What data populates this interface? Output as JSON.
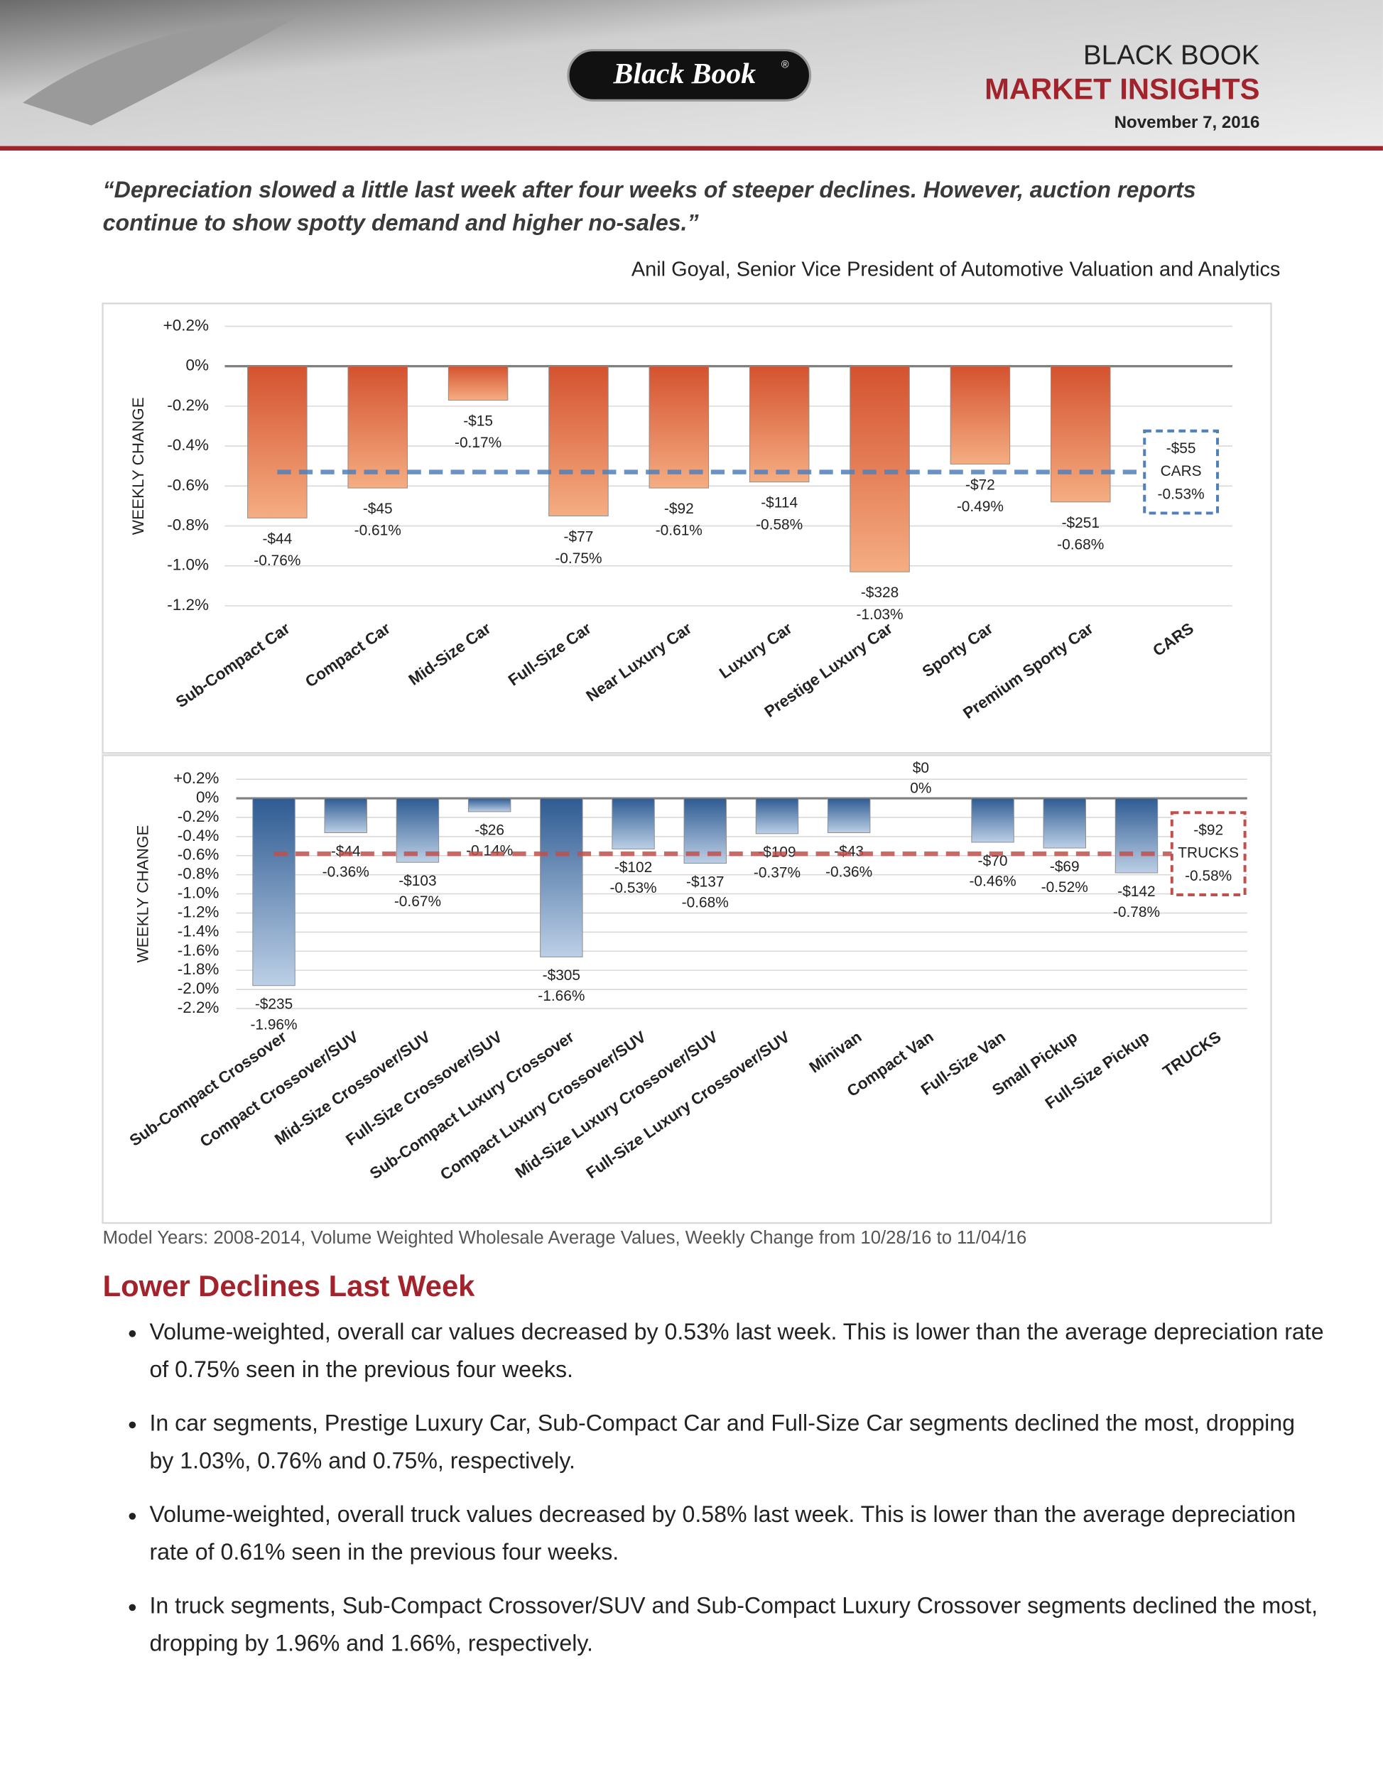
{
  "header": {
    "logo": "Black Book",
    "logo_mark": "®",
    "brand": "BLACK BOOK",
    "title": "MARKET INSIGHTS",
    "date": "November 7, 2016"
  },
  "quote": "“Depreciation slowed a little last week after four weeks of steeper declines. However, auction reports continue to show spotty demand and higher no-sales.”",
  "attribution": "Anil Goyal, Senior Vice President of Automotive Valuation and Analytics",
  "chart_data": [
    {
      "type": "bar",
      "y_label": "WEEKLY CHANGE",
      "categories": [
        "Sub-Compact Car",
        "Compact Car",
        "Mid-Size Car",
        "Full-Size Car",
        "Near Luxury Car",
        "Luxury Car",
        "Prestige Luxury Car",
        "Sporty Car",
        "Premium Sporty Car"
      ],
      "values": [
        -0.76,
        -0.61,
        -0.17,
        -0.75,
        -0.61,
        -0.58,
        -1.03,
        -0.49,
        -0.68
      ],
      "value_labels": [
        "-0.76%",
        "-0.61%",
        "-0.17%",
        "-0.75%",
        "-0.61%",
        "-0.58%",
        "-1.03%",
        "-0.49%",
        "-0.68%"
      ],
      "dollar_labels": [
        "-$44",
        "-$45",
        "-$15",
        "-$77",
        "-$92",
        "-$114",
        "-$328",
        "-$72",
        "-$251"
      ],
      "total": {
        "name": "CARS",
        "value": -0.53,
        "value_label": "-0.53%",
        "dollar_label": "-$55",
        "color": "#4f81bd"
      },
      "colors": [
        "#d4522f",
        "#f5ad82"
      ],
      "ylim": [
        -1.2,
        0.2
      ],
      "yticks": [
        {
          "value": 0.2,
          "label": "+0.2%"
        },
        {
          "value": 0,
          "label": "0%"
        },
        {
          "value": -0.2,
          "label": "-0.2%"
        },
        {
          "value": -0.4,
          "label": "-0.4%"
        },
        {
          "value": -0.6,
          "label": "-0.6%"
        },
        {
          "value": -0.8,
          "label": "-0.8%"
        },
        {
          "value": -1.0,
          "label": "-1.0%"
        },
        {
          "value": -1.2,
          "label": "-1.2%"
        }
      ],
      "grid": true
    },
    {
      "type": "bar",
      "y_label": "WEEKLY CHANGE",
      "categories": [
        "Sub-Compact Crossover",
        "Compact Crossover/SUV",
        "Mid-Size Crossover/SUV",
        "Full-Size Crossover/SUV",
        "Sub-Compact Luxury Crossover",
        "Compact Luxury Crossover/SUV",
        "Mid-Size Luxury Crossover/SUV",
        "Full-Size Luxury Crossover/SUV",
        "Minivan",
        "Compact Van",
        "Full-Size Van",
        "Small Pickup",
        "Full-Size Pickup"
      ],
      "values": [
        -1.96,
        -0.36,
        -0.67,
        -0.14,
        -1.66,
        -0.53,
        -0.68,
        -0.37,
        -0.36,
        0,
        -0.46,
        -0.52,
        -0.78
      ],
      "value_labels": [
        "-1.96%",
        "-0.36%",
        "-0.67%",
        "-0.14%",
        "-1.66%",
        "-0.53%",
        "-0.68%",
        "-0.37%",
        "-0.36%",
        "0%",
        "-0.46%",
        "-0.52%",
        "-0.78%"
      ],
      "dollar_labels": [
        "-$235",
        "-$44",
        "-$103",
        "-$26",
        "-$305",
        "-$102",
        "-$137",
        "-$109",
        "-$43",
        "$0",
        "-$70",
        "-$69",
        "-$142"
      ],
      "total": {
        "name": "TRUCKS",
        "value": -0.58,
        "value_label": "-0.58%",
        "dollar_label": "-$92",
        "color": "#c0504d"
      },
      "colors": [
        "#2e5b92",
        "#bccfe6"
      ],
      "ylim": [
        -2.2,
        0.2
      ],
      "yticks": [
        {
          "value": 0.2,
          "label": "+0.2%"
        },
        {
          "value": 0,
          "label": "0%"
        },
        {
          "value": -0.2,
          "label": "-0.2%"
        },
        {
          "value": -0.4,
          "label": "-0.4%"
        },
        {
          "value": -0.6,
          "label": "-0.6%"
        },
        {
          "value": -0.8,
          "label": "-0.8%"
        },
        {
          "value": -1.0,
          "label": "-1.0%"
        },
        {
          "value": -1.2,
          "label": "-1.2%"
        },
        {
          "value": -1.4,
          "label": "-1.4%"
        },
        {
          "value": -1.6,
          "label": "-1.6%"
        },
        {
          "value": -1.8,
          "label": "-1.8%"
        },
        {
          "value": -2.0,
          "label": "-2.0%"
        },
        {
          "value": -2.2,
          "label": "-2.2%"
        }
      ],
      "grid": true
    }
  ],
  "footnote": "Model Years: 2008-2014, Volume Weighted Wholesale Average Values, Weekly Change from 10/28/16 to 11/04/16",
  "section_title": "Lower Declines Last Week",
  "bullets": [
    "Volume-weighted, overall car values decreased by 0.53% last week. This is lower than the average depreciation rate of 0.75% seen in the previous four weeks.",
    "In car segments, Prestige Luxury Car, Sub-Compact Car and Full-Size Car segments declined the most, dropping by 1.03%, 0.76% and 0.75%, respectively.",
    "Volume-weighted, overall truck values decreased by 0.58% last week. This is lower than the average depreciation rate of 0.61% seen in the previous four weeks.",
    "In truck segments, Sub-Compact Crossover/SUV and Sub-Compact Luxury Crossover segments declined the most, dropping by 1.96% and 1.66%, respectively."
  ]
}
